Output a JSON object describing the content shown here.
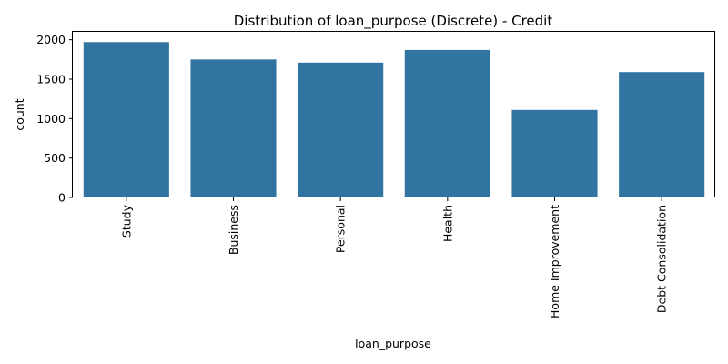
{
  "chart_data": {
    "type": "bar",
    "title": "Distribution of loan_purpose (Discrete) - Credit",
    "xlabel": "loan_purpose",
    "ylabel": "count",
    "categories": [
      "Study",
      "Business",
      "Personal",
      "Health",
      "Home Improvement",
      "Debt Consolidation"
    ],
    "values": [
      1970,
      1750,
      1710,
      1870,
      1110,
      1590
    ],
    "ylim": [
      0,
      2100
    ],
    "yticks": [
      0,
      500,
      1000,
      1500,
      2000
    ],
    "ytick_labels": [
      "0",
      "500",
      "1000",
      "1500",
      "2000"
    ],
    "bar_color": "#3274a1",
    "grid": false,
    "legend": "none"
  }
}
